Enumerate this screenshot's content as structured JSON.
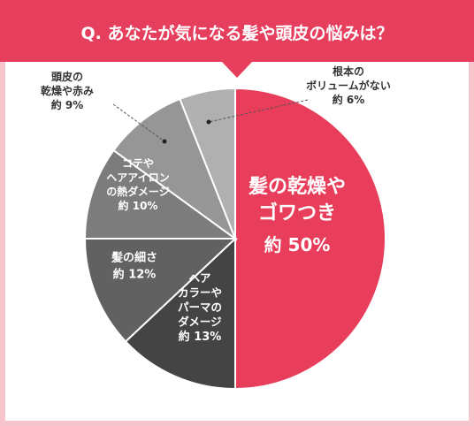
{
  "chart_data": {
    "type": "pie",
    "title": "Q. あなたが気になる髪や頭皮の悩みは？",
    "start": "12 o'clock, clockwise",
    "slices": [
      {
        "label_lines": [
          "髪の乾燥や",
          "ゴワつき"
        ],
        "value_text": "約 50%",
        "value": 50,
        "color": "#e83e5c",
        "label_color": "#ffffff",
        "label_placement": "inside"
      },
      {
        "label_lines": [
          "ヘア",
          "カラーや",
          "パーマの",
          "ダメージ"
        ],
        "value_text": "約 13%",
        "value": 13,
        "color": "#444444",
        "label_color": "#ffffff",
        "label_placement": "inside"
      },
      {
        "label_lines": [
          "髪の細さ"
        ],
        "value_text": "約 12%",
        "value": 12,
        "color": "#616161",
        "label_color": "#ffffff",
        "label_placement": "inside"
      },
      {
        "label_lines": [
          "コテや",
          "ヘアアイロン",
          "の熱ダメージ"
        ],
        "value_text": "約 10%",
        "value": 10,
        "color": "#7c7c7c",
        "label_color": "#ffffff",
        "label_placement": "inside"
      },
      {
        "label_lines": [
          "頭皮の",
          "乾燥や赤み"
        ],
        "value_text": "約 9%",
        "value": 9,
        "color": "#969696",
        "label_color": "#333333",
        "label_placement": "outside-left"
      },
      {
        "label_lines": [
          "根本の",
          "ボリュームがない"
        ],
        "value_text": "約 6%",
        "value": 6,
        "color": "#b0b0b0",
        "label_color": "#333333",
        "label_placement": "outside-right"
      }
    ],
    "colors": {
      "header": "#e63e5d",
      "header_text": "#ffffff",
      "frame_border": "#f6c4cd",
      "slice_border": "#ffffff",
      "leader_line": "#555555"
    }
  }
}
